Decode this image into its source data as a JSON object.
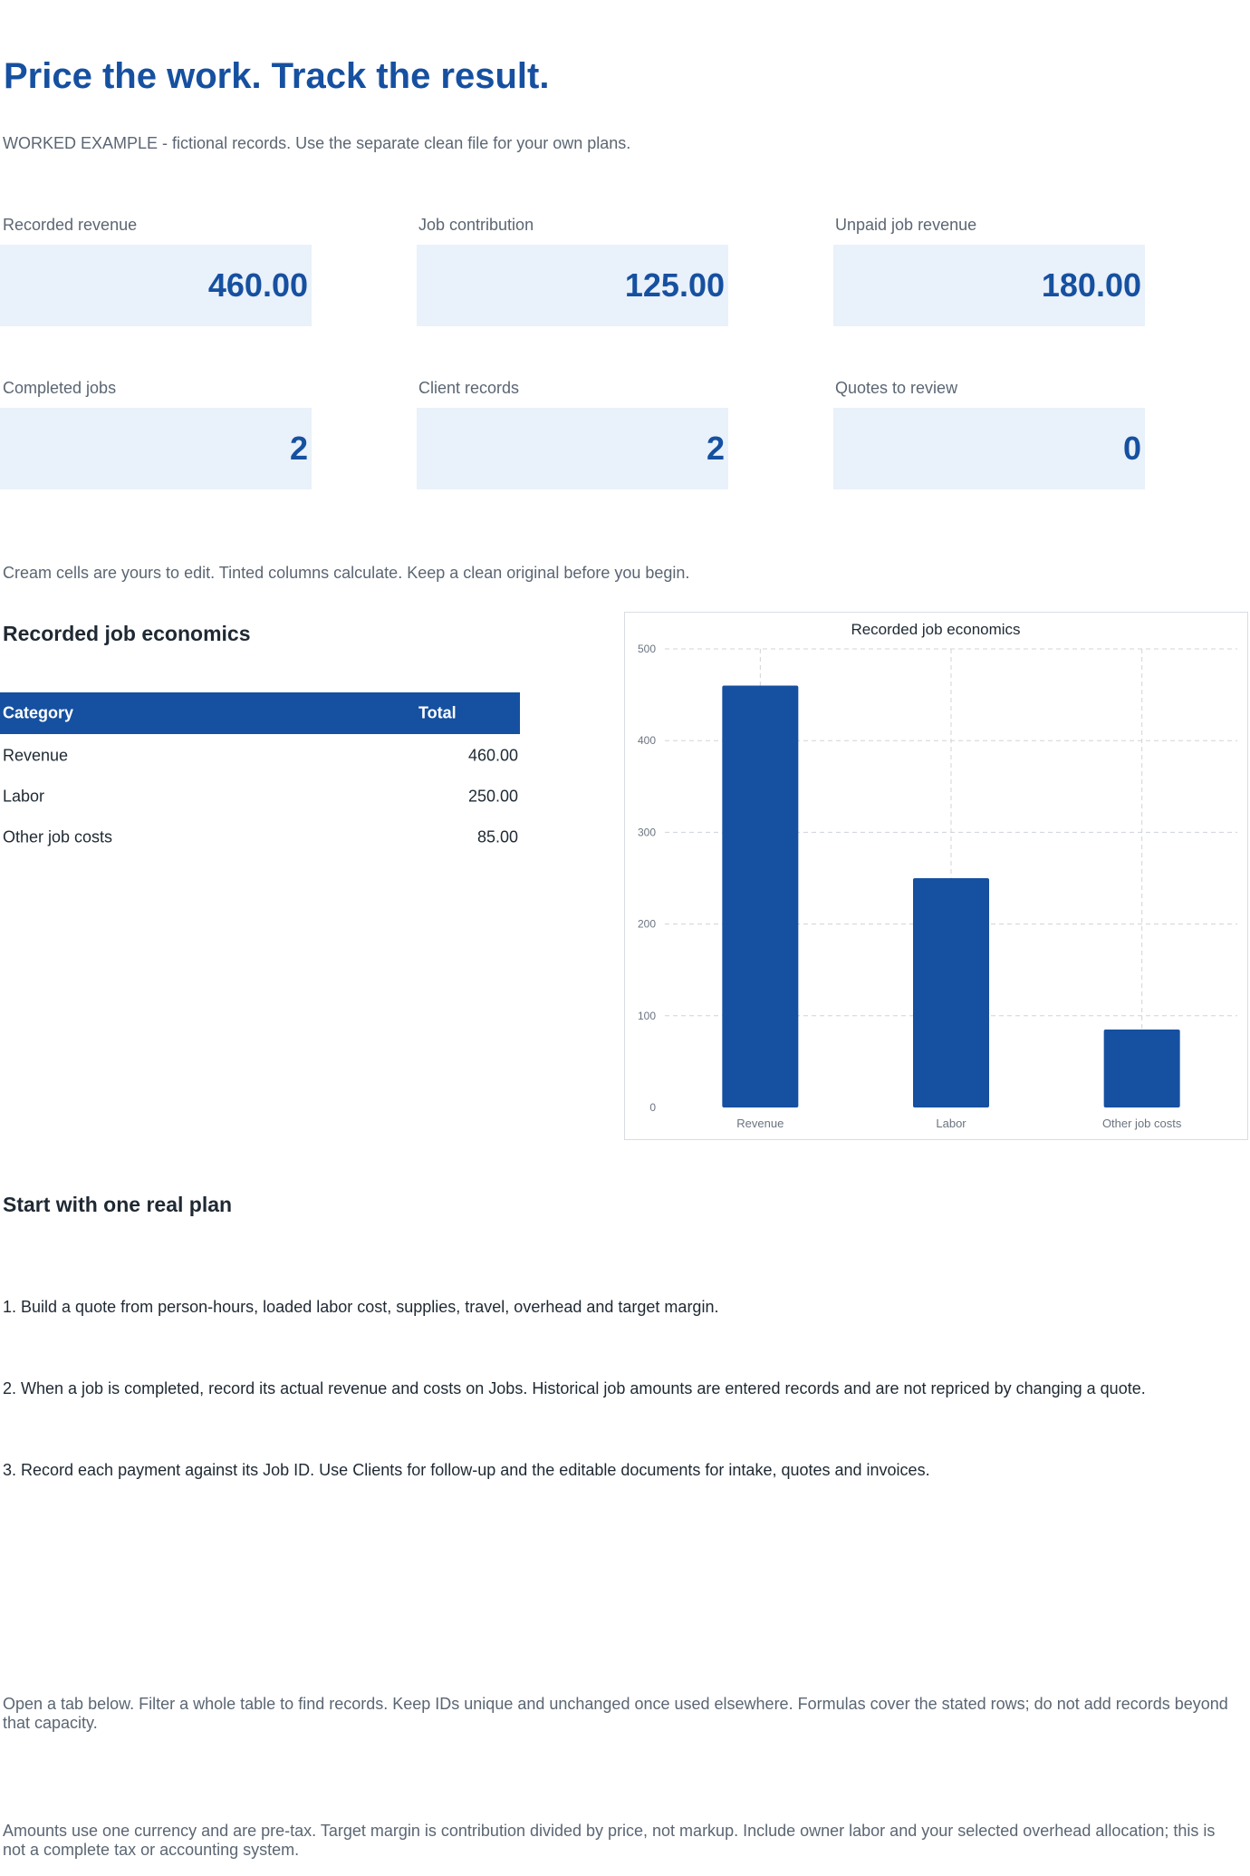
{
  "header": {
    "title": "Price the work. Track the result.",
    "subtitle": "WORKED EXAMPLE - fictional records. Use the separate clean file for your own plans."
  },
  "kpis": [
    {
      "label": "Recorded revenue",
      "value": "460.00"
    },
    {
      "label": "Job contribution",
      "value": "125.00"
    },
    {
      "label": "Unpaid job revenue",
      "value": "180.00"
    },
    {
      "label": "Completed jobs",
      "value": "2"
    },
    {
      "label": "Client records",
      "value": "2"
    },
    {
      "label": "Quotes to review",
      "value": "0"
    }
  ],
  "edit_note": "Cream cells are yours to edit. Tinted columns calculate. Keep a clean original before you begin.",
  "economics": {
    "heading": "Recorded job economics",
    "table": {
      "headers": [
        "Category",
        "Total"
      ],
      "rows": [
        {
          "category": "Revenue",
          "total": "460.00"
        },
        {
          "category": "Labor",
          "total": "250.00"
        },
        {
          "category": "Other job costs",
          "total": "85.00"
        }
      ]
    }
  },
  "chart_data": {
    "type": "bar",
    "title": "Recorded job economics",
    "categories": [
      "Revenue",
      "Labor",
      "Other job costs"
    ],
    "values": [
      460,
      250,
      85
    ],
    "ylim": [
      0,
      500
    ],
    "yticks": [
      0,
      100,
      200,
      300,
      400,
      500
    ],
    "xlabel": "",
    "ylabel": "",
    "grid": true,
    "bar_color": "#1650a0"
  },
  "plan": {
    "heading": "Start with one real plan",
    "steps": [
      "1. Build a quote from person-hours, loaded labor cost, supplies, travel, overhead and target margin.",
      "2. When a job is completed, record its actual revenue and costs on Jobs. Historical job amounts are entered records and are not repriced by changing a quote.",
      "3. Record each payment against its Job ID. Use Clients for follow-up and the editable documents for intake, quotes and invoices."
    ]
  },
  "footer_notes": [
    "Open a tab below. Filter a whole table to find records. Keep IDs unique and unchanged once used elsewhere. Formulas cover the stated rows; do not add records beyond that capacity.",
    "Amounts use one currency and are pre-tax. Target margin is contribution divided by price, not markup. Include owner labor and your selected overhead allocation; this is not a complete tax or accounting system."
  ],
  "colors": {
    "accent": "#1650a0",
    "kpi_bg": "#e9f1fa",
    "muted_text": "#5b6673"
  }
}
